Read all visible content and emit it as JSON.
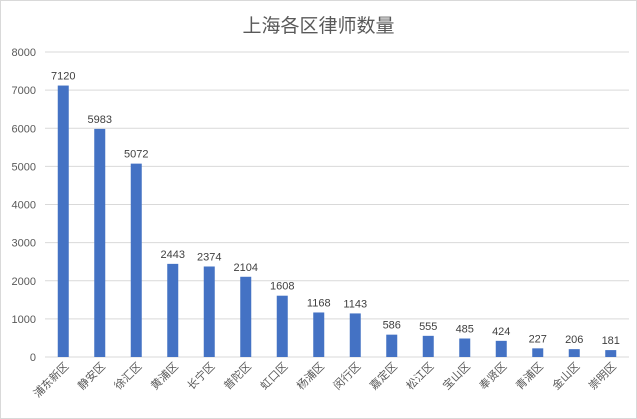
{
  "chart_data": {
    "type": "bar",
    "title": "上海各区律师数量",
    "xlabel": "",
    "ylabel": "",
    "categories": [
      "浦东新区",
      "静安区",
      "徐汇区",
      "黄浦区",
      "长宁区",
      "普陀区",
      "虹口区",
      "杨浦区",
      "闵行区",
      "嘉定区",
      "松江区",
      "宝山区",
      "奉贤区",
      "青浦区",
      "金山区",
      "崇明区"
    ],
    "values": [
      7120,
      5983,
      5072,
      2443,
      2374,
      2104,
      1608,
      1168,
      1143,
      586,
      555,
      485,
      424,
      227,
      206,
      181
    ],
    "ylim": [
      0,
      8000
    ],
    "yticks": [
      0,
      1000,
      2000,
      3000,
      4000,
      5000,
      6000,
      7000,
      8000
    ],
    "grid": true,
    "legend": "none",
    "bar_color": "#4472c4",
    "grid_color": "#d9d9d9"
  }
}
